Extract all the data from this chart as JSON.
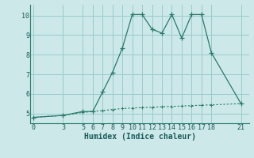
{
  "xlabel": "Humidex (Indice chaleur)",
  "bg_color": "#cce8e8",
  "grid_color": "#99cccc",
  "line_color": "#2a7a6a",
  "line1_x": [
    0,
    3,
    5,
    6,
    7,
    8,
    9,
    10,
    11,
    12,
    13,
    14,
    15,
    16,
    17,
    18,
    21
  ],
  "line1_y": [
    4.8,
    4.9,
    5.1,
    5.1,
    6.1,
    7.1,
    8.35,
    10.05,
    10.05,
    9.3,
    9.1,
    10.05,
    8.85,
    10.05,
    10.05,
    8.1,
    5.5
  ],
  "line2_x": [
    0,
    3,
    5,
    6,
    7,
    8,
    9,
    10,
    11,
    12,
    13,
    14,
    15,
    16,
    17,
    18,
    21
  ],
  "line2_y": [
    4.8,
    4.9,
    5.05,
    5.1,
    5.15,
    5.2,
    5.25,
    5.28,
    5.3,
    5.32,
    5.34,
    5.36,
    5.38,
    5.4,
    5.42,
    5.44,
    5.5
  ],
  "xticks": [
    0,
    3,
    5,
    6,
    7,
    8,
    9,
    10,
    11,
    12,
    13,
    14,
    15,
    16,
    17,
    18,
    21
  ],
  "yticks": [
    5,
    6,
    7,
    8,
    9,
    10
  ],
  "xlim": [
    -0.3,
    21.8
  ],
  "ylim": [
    4.5,
    10.55
  ]
}
